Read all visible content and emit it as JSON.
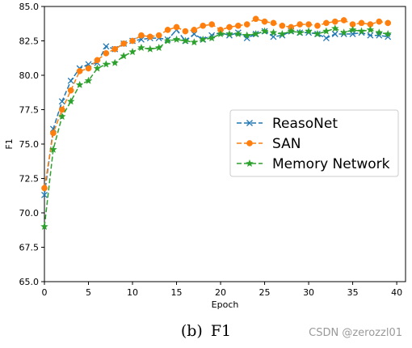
{
  "caption": {
    "part": "(b)",
    "text": "F1"
  },
  "watermark": "CSDN @zerozzl01",
  "chart_data": {
    "type": "line",
    "xlabel": "Epoch",
    "ylabel": "F1",
    "xlim": [
      0,
      41
    ],
    "ylim": [
      65.0,
      85.0
    ],
    "xticks": [
      0,
      5,
      10,
      15,
      20,
      25,
      30,
      35,
      40
    ],
    "yticks": [
      65.0,
      67.5,
      70.0,
      72.5,
      75.0,
      77.5,
      80.0,
      82.5,
      85.0
    ],
    "grid": false,
    "legend_position": "center-right",
    "x": [
      0,
      1,
      2,
      3,
      4,
      5,
      6,
      7,
      8,
      9,
      10,
      11,
      12,
      13,
      14,
      15,
      16,
      17,
      18,
      19,
      20,
      21,
      22,
      23,
      24,
      25,
      26,
      27,
      28,
      29,
      30,
      31,
      32,
      33,
      34,
      35,
      36,
      37,
      38,
      39
    ],
    "series": [
      {
        "name": "ReasoNet",
        "color": "#1f77b4",
        "marker": "x",
        "values": [
          71.3,
          76.1,
          78.1,
          79.6,
          80.5,
          80.8,
          80.9,
          82.1,
          81.9,
          82.3,
          82.5,
          82.6,
          82.7,
          82.7,
          82.6,
          83.3,
          82.5,
          83.0,
          82.6,
          82.9,
          83.1,
          82.9,
          83.1,
          82.7,
          83.0,
          83.2,
          82.8,
          82.9,
          83.2,
          83.1,
          83.1,
          83.0,
          82.7,
          83.0,
          83.0,
          83.0,
          83.1,
          82.9,
          82.9,
          82.8
        ]
      },
      {
        "name": "SAN",
        "color": "#ff7f0e",
        "marker": "o",
        "values": [
          71.8,
          75.8,
          77.5,
          78.9,
          80.3,
          80.5,
          81.1,
          81.6,
          81.9,
          82.3,
          82.5,
          82.9,
          82.8,
          82.9,
          83.3,
          83.5,
          83.2,
          83.3,
          83.6,
          83.7,
          83.3,
          83.5,
          83.6,
          83.7,
          84.1,
          83.9,
          83.8,
          83.6,
          83.5,
          83.7,
          83.7,
          83.6,
          83.8,
          83.9,
          84.0,
          83.7,
          83.8,
          83.7,
          83.9,
          83.8
        ]
      },
      {
        "name": "Memory Network",
        "color": "#2ca02c",
        "marker": "*",
        "values": [
          69.0,
          74.6,
          77.0,
          78.1,
          79.3,
          79.6,
          80.5,
          80.8,
          80.9,
          81.4,
          81.7,
          82.0,
          81.9,
          82.0,
          82.5,
          82.6,
          82.5,
          82.4,
          82.6,
          82.7,
          83.0,
          83.0,
          83.0,
          82.9,
          83.0,
          83.2,
          83.1,
          83.0,
          83.2,
          83.1,
          83.2,
          83.0,
          83.2,
          83.4,
          83.1,
          83.3,
          83.2,
          83.3,
          83.1,
          83.0
        ]
      }
    ]
  }
}
